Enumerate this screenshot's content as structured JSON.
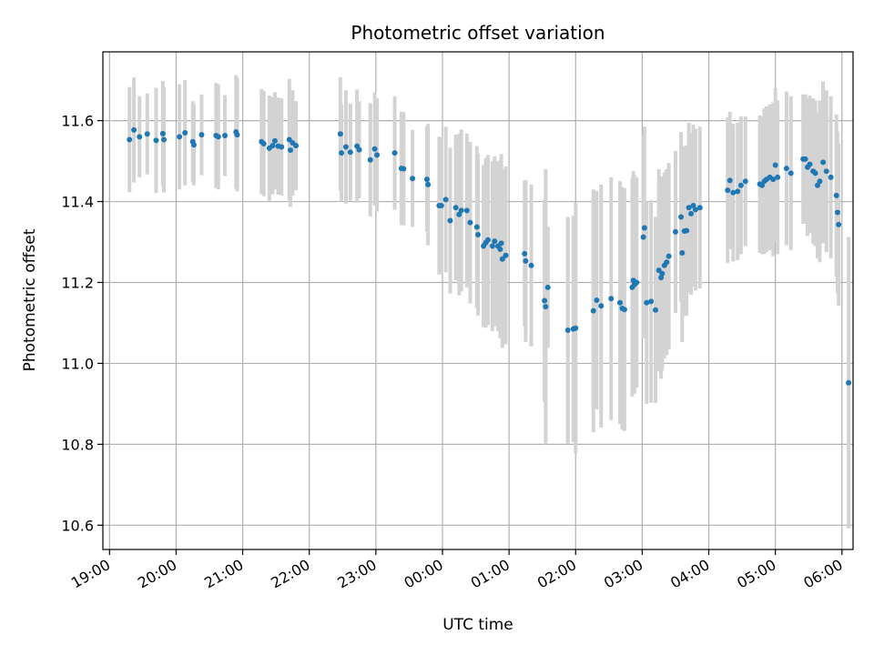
{
  "chart_data": {
    "type": "scatter",
    "title": "Photometric offset variation",
    "xlabel": "UTC time",
    "ylabel": "Photometric offset",
    "x_ticks": [
      "19:00",
      "20:00",
      "21:00",
      "22:00",
      "23:00",
      "00:00",
      "01:00",
      "02:00",
      "03:00",
      "04:00",
      "05:00",
      "06:00"
    ],
    "y_ticks": [
      "10.6",
      "10.8",
      "11.0",
      "11.2",
      "11.4",
      "11.6"
    ],
    "xlim": [
      "19:00",
      "06:10"
    ],
    "ylim": [
      10.54,
      11.77
    ],
    "grid": true,
    "colors": {
      "points": "#1f77b4",
      "error_bars": "#d3d3d3",
      "grid": "#b0b0b0"
    },
    "series": [
      {
        "marker": "point",
        "points": [
          {
            "x": "19:18",
            "y": 11.553,
            "err": 0.13
          },
          {
            "x": "19:22",
            "y": 11.577,
            "err": 0.13
          },
          {
            "x": "19:27",
            "y": 11.56,
            "err": 0.1
          },
          {
            "x": "19:34",
            "y": 11.567,
            "err": 0.1
          },
          {
            "x": "19:42",
            "y": 11.551,
            "err": 0.13
          },
          {
            "x": "19:48",
            "y": 11.568,
            "err": 0.13
          },
          {
            "x": "19:49",
            "y": 11.553,
            "err": 0.13
          },
          {
            "x": "20:03",
            "y": 11.56,
            "err": 0.13
          },
          {
            "x": "20:08",
            "y": 11.57,
            "err": 0.13
          },
          {
            "x": "20:15",
            "y": 11.548,
            "err": 0.1
          },
          {
            "x": "20:16",
            "y": 11.54,
            "err": 0.1
          },
          {
            "x": "20:23",
            "y": 11.565,
            "err": 0.1
          },
          {
            "x": "20:36",
            "y": 11.563,
            "err": 0.13
          },
          {
            "x": "20:38",
            "y": 11.56,
            "err": 0.13
          },
          {
            "x": "20:44",
            "y": 11.563,
            "err": 0.1
          },
          {
            "x": "20:54",
            "y": 11.572,
            "err": 0.14
          },
          {
            "x": "20:55",
            "y": 11.565,
            "err": 0.14
          },
          {
            "x": "21:17",
            "y": 11.548,
            "err": 0.13
          },
          {
            "x": "21:19",
            "y": 11.543,
            "err": 0.13
          },
          {
            "x": "21:24",
            "y": 11.532,
            "err": 0.13
          },
          {
            "x": "21:27",
            "y": 11.538,
            "err": 0.12
          },
          {
            "x": "21:29",
            "y": 11.55,
            "err": 0.12
          },
          {
            "x": "21:32",
            "y": 11.537,
            "err": 0.12
          },
          {
            "x": "21:35",
            "y": 11.535,
            "err": 0.12
          },
          {
            "x": "21:42",
            "y": 11.553,
            "err": 0.15
          },
          {
            "x": "21:43",
            "y": 11.527,
            "err": 0.14
          },
          {
            "x": "21:45",
            "y": 11.545,
            "err": 0.13
          },
          {
            "x": "21:48",
            "y": 11.538,
            "err": 0.11
          },
          {
            "x": "22:28",
            "y": 11.567,
            "err": 0.14
          },
          {
            "x": "22:29",
            "y": 11.52,
            "err": 0.12
          },
          {
            "x": "22:33",
            "y": 11.535,
            "err": 0.14
          },
          {
            "x": "22:37",
            "y": 11.522,
            "err": 0.12
          },
          {
            "x": "22:43",
            "y": 11.537,
            "err": 0.14
          },
          {
            "x": "22:45",
            "y": 11.528,
            "err": 0.12
          },
          {
            "x": "22:55",
            "y": 11.503,
            "err": 0.14
          },
          {
            "x": "22:59",
            "y": 11.53,
            "err": 0.14
          },
          {
            "x": "23:01",
            "y": 11.515,
            "err": 0.14
          },
          {
            "x": "23:17",
            "y": 11.52,
            "err": 0.14
          },
          {
            "x": "23:23",
            "y": 11.482,
            "err": 0.14
          },
          {
            "x": "23:25",
            "y": 11.481,
            "err": 0.14
          },
          {
            "x": "23:33",
            "y": 11.457,
            "err": 0.12
          },
          {
            "x": "23:46",
            "y": 11.455,
            "err": 0.13
          },
          {
            "x": "23:47",
            "y": 11.442,
            "err": 0.15
          },
          {
            "x": "23:57",
            "y": 11.39,
            "err": 0.17
          },
          {
            "x": "23:59",
            "y": 11.39,
            "err": 0.17
          },
          {
            "x": "00:03",
            "y": 11.405,
            "err": 0.18
          },
          {
            "x": "00:07",
            "y": 11.353,
            "err": 0.18
          },
          {
            "x": "00:12",
            "y": 11.385,
            "err": 0.18
          },
          {
            "x": "00:15",
            "y": 11.368,
            "err": 0.2
          },
          {
            "x": "00:17",
            "y": 11.378,
            "err": 0.2
          },
          {
            "x": "00:22",
            "y": 11.378,
            "err": 0.19
          },
          {
            "x": "00:25",
            "y": 11.348,
            "err": 0.2
          },
          {
            "x": "00:31",
            "y": 11.337,
            "err": 0.2
          },
          {
            "x": "00:32",
            "y": 11.318,
            "err": 0.2
          },
          {
            "x": "00:37",
            "y": 11.29,
            "err": 0.2
          },
          {
            "x": "00:39",
            "y": 11.298,
            "err": 0.21
          },
          {
            "x": "00:41",
            "y": 11.305,
            "err": 0.21
          },
          {
            "x": "00:45",
            "y": 11.29,
            "err": 0.21
          },
          {
            "x": "00:47",
            "y": 11.302,
            "err": 0.21
          },
          {
            "x": "00:50",
            "y": 11.29,
            "err": 0.21
          },
          {
            "x": "00:52",
            "y": 11.282,
            "err": 0.22
          },
          {
            "x": "00:53",
            "y": 11.297,
            "err": 0.22
          },
          {
            "x": "00:54",
            "y": 11.258,
            "err": 0.22
          },
          {
            "x": "00:57",
            "y": 11.267,
            "err": 0.22
          },
          {
            "x": "01:14",
            "y": 11.271,
            "err": 0.18
          },
          {
            "x": "01:15",
            "y": 11.253,
            "err": 0.2
          },
          {
            "x": "01:20",
            "y": 11.242,
            "err": 0.2
          },
          {
            "x": "01:32",
            "y": 11.155,
            "err": 0.25
          },
          {
            "x": "01:33",
            "y": 11.14,
            "err": 0.34
          },
          {
            "x": "01:35",
            "y": 11.188,
            "err": 0.15
          },
          {
            "x": "01:53",
            "y": 11.082,
            "err": 0.28
          },
          {
            "x": "01:58",
            "y": 11.085,
            "err": 0.28
          },
          {
            "x": "02:00",
            "y": 11.087,
            "err": 0.31
          },
          {
            "x": "02:16",
            "y": 11.13,
            "err": 0.3
          },
          {
            "x": "02:19",
            "y": 11.156,
            "err": 0.27
          },
          {
            "x": "02:23",
            "y": 11.142,
            "err": 0.3
          },
          {
            "x": "02:32",
            "y": 11.16,
            "err": 0.3
          },
          {
            "x": "02:40",
            "y": 11.15,
            "err": 0.3
          },
          {
            "x": "02:42",
            "y": 11.136,
            "err": 0.3
          },
          {
            "x": "02:44",
            "y": 11.133,
            "err": 0.3
          },
          {
            "x": "02:51",
            "y": 11.188,
            "err": 0.27
          },
          {
            "x": "02:52",
            "y": 11.205,
            "err": 0.27
          },
          {
            "x": "02:53",
            "y": 11.195,
            "err": 0.27
          },
          {
            "x": "02:55",
            "y": 11.2,
            "err": 0.26
          },
          {
            "x": "03:01",
            "y": 11.312,
            "err": 0.25
          },
          {
            "x": "03:02",
            "y": 11.335,
            "err": 0.25
          },
          {
            "x": "03:04",
            "y": 11.15,
            "err": 0.25
          },
          {
            "x": "03:08",
            "y": 11.153,
            "err": 0.25
          },
          {
            "x": "03:12",
            "y": 11.132,
            "err": 0.23
          },
          {
            "x": "03:15",
            "y": 11.23,
            "err": 0.25
          },
          {
            "x": "03:17",
            "y": 11.212,
            "err": 0.25
          },
          {
            "x": "03:18",
            "y": 11.222,
            "err": 0.24
          },
          {
            "x": "03:20",
            "y": 11.242,
            "err": 0.23
          },
          {
            "x": "03:22",
            "y": 11.25,
            "err": 0.23
          },
          {
            "x": "03:24",
            "y": 11.265,
            "err": 0.23
          },
          {
            "x": "03:30",
            "y": 11.325,
            "err": 0.2
          },
          {
            "x": "03:35",
            "y": 11.362,
            "err": 0.21
          },
          {
            "x": "03:38",
            "y": 11.327,
            "err": 0.21
          },
          {
            "x": "03:40",
            "y": 11.328,
            "err": 0.21
          },
          {
            "x": "03:42",
            "y": 11.385,
            "err": 0.21
          },
          {
            "x": "03:44",
            "y": 11.37,
            "err": 0.2
          },
          {
            "x": "03:46",
            "y": 11.39,
            "err": 0.2
          },
          {
            "x": "03:48",
            "y": 11.38,
            "err": 0.2
          },
          {
            "x": "03:52",
            "y": 11.385,
            "err": 0.2
          },
          {
            "x": "03:36",
            "y": 11.273,
            "err": 0.22
          },
          {
            "x": "04:17",
            "y": 11.428,
            "err": 0.18
          },
          {
            "x": "04:19",
            "y": 11.452,
            "err": 0.17
          },
          {
            "x": "04:22",
            "y": 11.422,
            "err": 0.17
          },
          {
            "x": "04:26",
            "y": 11.425,
            "err": 0.17
          },
          {
            "x": "04:29",
            "y": 11.44,
            "err": 0.17
          },
          {
            "x": "04:33",
            "y": 11.45,
            "err": 0.16
          },
          {
            "x": "04:46",
            "y": 11.443,
            "err": 0.17
          },
          {
            "x": "04:48",
            "y": 11.44,
            "err": 0.17
          },
          {
            "x": "04:50",
            "y": 11.45,
            "err": 0.18
          },
          {
            "x": "04:52",
            "y": 11.455,
            "err": 0.18
          },
          {
            "x": "04:55",
            "y": 11.46,
            "err": 0.18
          },
          {
            "x": "04:58",
            "y": 11.455,
            "err": 0.19
          },
          {
            "x": "05:00",
            "y": 11.49,
            "err": 0.19
          },
          {
            "x": "05:02",
            "y": 11.46,
            "err": 0.19
          },
          {
            "x": "05:10",
            "y": 11.482,
            "err": 0.19
          },
          {
            "x": "05:14",
            "y": 11.47,
            "err": 0.19
          },
          {
            "x": "05:25",
            "y": 11.505,
            "err": 0.16
          },
          {
            "x": "05:27",
            "y": 11.505,
            "err": 0.16
          },
          {
            "x": "05:29",
            "y": 11.485,
            "err": 0.17
          },
          {
            "x": "05:31",
            "y": 11.492,
            "err": 0.17
          },
          {
            "x": "05:34",
            "y": 11.475,
            "err": 0.18
          },
          {
            "x": "05:36",
            "y": 11.47,
            "err": 0.18
          },
          {
            "x": "05:38",
            "y": 11.44,
            "err": 0.18
          },
          {
            "x": "05:40",
            "y": 11.45,
            "err": 0.2
          },
          {
            "x": "05:43",
            "y": 11.497,
            "err": 0.2
          },
          {
            "x": "05:46",
            "y": 11.475,
            "err": 0.2
          },
          {
            "x": "05:50",
            "y": 11.46,
            "err": 0.2
          },
          {
            "x": "05:55",
            "y": 11.415,
            "err": 0.2
          },
          {
            "x": "05:56",
            "y": 11.373,
            "err": 0.2
          },
          {
            "x": "05:57",
            "y": 11.343,
            "err": 0.2
          },
          {
            "x": "06:06",
            "y": 10.952,
            "err": 0.36
          }
        ]
      }
    ]
  }
}
